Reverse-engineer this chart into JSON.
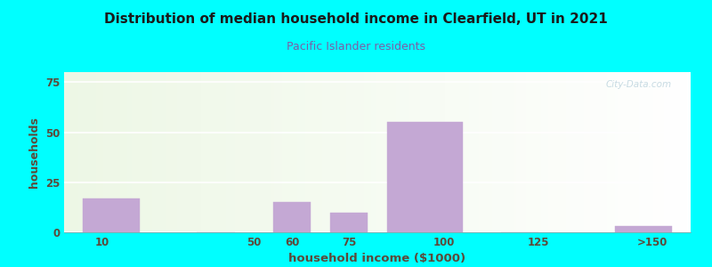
{
  "title": "Distribution of median household income in Clearfield, UT in 2021",
  "subtitle": "Pacific Islander residents",
  "xlabel": "household income ($1000)",
  "ylabel": "households",
  "title_color": "#1a1a1a",
  "subtitle_color": "#7B5EA7",
  "axis_label_color": "#5C4A3A",
  "tick_label_color": "#5C4A3A",
  "background_outer": "#00FFFF",
  "bar_color": "#C4A8D4",
  "bar_edge_color": "#C4A8D4",
  "bar_lefts": [
    5,
    35,
    55,
    70,
    85,
    115,
    145
  ],
  "bar_widths": [
    15,
    10,
    10,
    10,
    20,
    10,
    15
  ],
  "bar_heights": [
    17,
    0,
    15,
    10,
    55,
    0,
    3
  ],
  "ylim": [
    0,
    80
  ],
  "yticks": [
    0,
    25,
    50,
    75
  ],
  "xtick_positions": [
    10,
    50,
    60,
    75,
    100,
    125,
    155
  ],
  "xtick_labels": [
    "10",
    "50",
    "60",
    "75",
    "100",
    "125",
    ">150"
  ],
  "watermark": "City-Data.com"
}
